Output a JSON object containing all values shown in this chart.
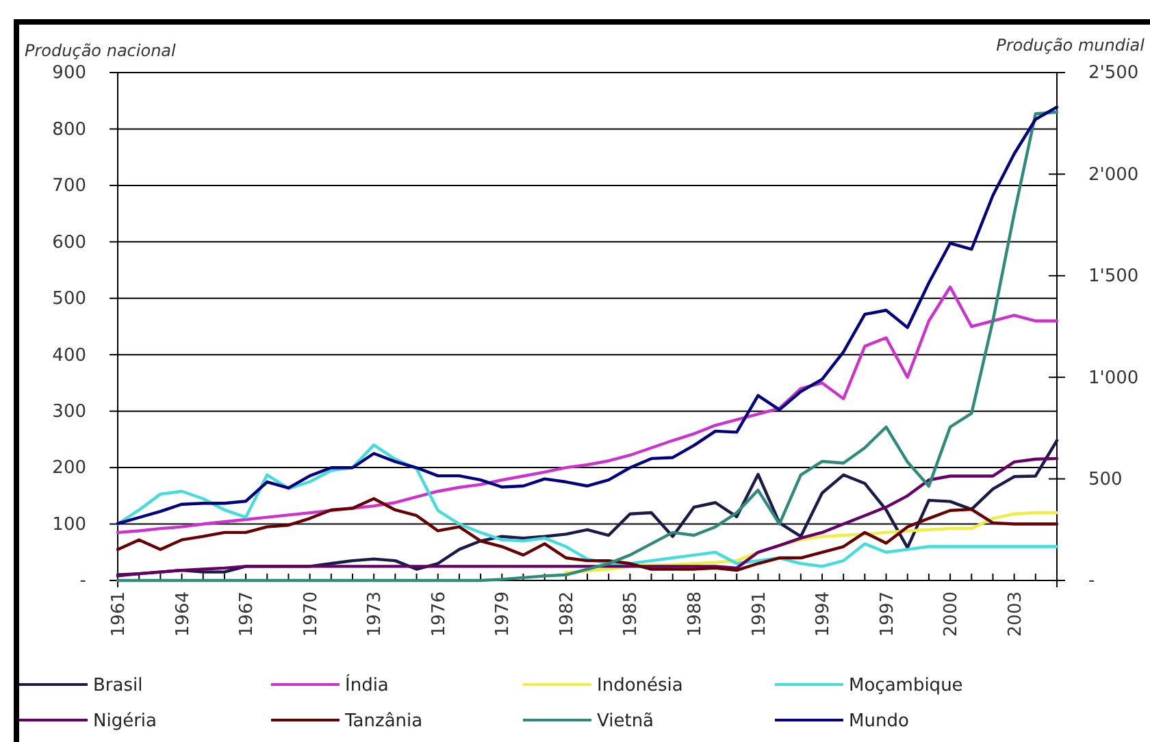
{
  "chart_data": {
    "type": "line",
    "ylabel": "Produção nacional",
    "y2label": "Produção mundial",
    "x": [
      1961,
      1962,
      1963,
      1964,
      1965,
      1966,
      1967,
      1968,
      1969,
      1970,
      1971,
      1972,
      1973,
      1974,
      1975,
      1976,
      1977,
      1978,
      1979,
      1980,
      1981,
      1982,
      1983,
      1984,
      1985,
      1986,
      1987,
      1988,
      1989,
      1990,
      1991,
      1992,
      1993,
      1994,
      1995,
      1996,
      1997,
      1998,
      1999,
      2000,
      2001,
      2002,
      2003,
      2004,
      2005
    ],
    "xlim": [
      1961,
      2005
    ],
    "xticks": [
      1961,
      {
        "value": 1962,
        "label": null
      },
      {
        "value": 1963,
        "label": null
      },
      1964,
      {
        "value": 1965,
        "label": null
      },
      {
        "value": 1966,
        "label": null
      },
      1967,
      {
        "value": 1968,
        "label": null
      },
      {
        "value": 1969,
        "label": null
      },
      1970,
      {
        "value": 1971,
        "label": null
      },
      {
        "value": 1972,
        "label": null
      },
      1973,
      {
        "value": 1974,
        "label": null
      },
      {
        "value": 1975,
        "label": null
      },
      1976,
      {
        "value": 1977,
        "label": null
      },
      {
        "value": 1978,
        "label": null
      },
      1979,
      {
        "value": 1980,
        "label": null
      },
      {
        "value": 1981,
        "label": null
      },
      1982,
      {
        "value": 1983,
        "label": null
      },
      {
        "value": 1984,
        "label": null
      },
      1985,
      {
        "value": 1986,
        "label": null
      },
      {
        "value": 1987,
        "label": null
      },
      1988,
      {
        "value": 1989,
        "label": null
      },
      {
        "value": 1990,
        "label": null
      },
      1991,
      {
        "value": 1992,
        "label": null
      },
      {
        "value": 1993,
        "label": null
      },
      1994,
      {
        "value": 1995,
        "label": null
      },
      {
        "value": 1996,
        "label": null
      },
      1997,
      {
        "value": 1998,
        "label": null
      },
      {
        "value": 1999,
        "label": null
      },
      2000,
      {
        "value": 2001,
        "label": null
      },
      {
        "value": 2002,
        "label": null
      },
      2003,
      {
        "value": 2004,
        "label": null
      },
      {
        "value": 2005,
        "label": null
      }
    ],
    "ylim": [
      0,
      900
    ],
    "yticks": [
      {
        "value": 0,
        "label": "-"
      },
      100,
      200,
      300,
      400,
      500,
      600,
      700,
      800,
      900
    ],
    "y2lim": [
      0,
      2500
    ],
    "y2ticks": [
      {
        "value": 0,
        "label": "-"
      },
      {
        "value": 500,
        "label": "500"
      },
      {
        "value": 1000,
        "label": "1'000"
      },
      {
        "value": 1500,
        "label": "1'500"
      },
      {
        "value": 2000,
        "label": "2'000"
      },
      {
        "value": 2500,
        "label": "2'500"
      }
    ],
    "grid": "y",
    "legend": "bottom",
    "marker": "none",
    "line_style": "solid",
    "series": [
      {
        "name": "Brasil",
        "color": "#1a1a4a",
        "values": [
          10,
          12,
          15,
          18,
          15,
          15,
          25,
          25,
          25,
          25,
          30,
          35,
          38,
          35,
          20,
          30,
          55,
          70,
          78,
          75,
          78,
          82,
          90,
          80,
          118,
          120,
          78,
          130,
          138,
          113,
          188,
          102,
          78,
          155,
          187,
          172,
          125,
          58,
          142,
          140,
          126,
          162,
          184,
          185,
          248
        ]
      },
      {
        "name": "Índia",
        "color": "#cc33cc",
        "values": [
          85,
          88,
          92,
          95,
          100,
          104,
          108,
          112,
          116,
          120,
          124,
          128,
          132,
          138,
          148,
          158,
          165,
          170,
          178,
          185,
          192,
          200,
          205,
          212,
          222,
          235,
          248,
          260,
          275,
          285,
          295,
          305,
          340,
          350,
          322,
          415,
          430,
          360,
          460,
          520,
          450,
          460,
          470,
          460,
          460
        ]
      },
      {
        "name": "Indonésia",
        "color": "#eeee44",
        "values": [
          null,
          null,
          null,
          null,
          null,
          null,
          null,
          null,
          null,
          null,
          null,
          null,
          null,
          null,
          null,
          null,
          null,
          null,
          null,
          null,
          null,
          14,
          17,
          20,
          25,
          27,
          28,
          30,
          32,
          35,
          50,
          62,
          72,
          78,
          80,
          82,
          85,
          88,
          90,
          92,
          92,
          110,
          118,
          120,
          120
        ]
      },
      {
        "name": "Moçambique",
        "color": "#44dddd",
        "values": [
          100,
          125,
          153,
          158,
          145,
          125,
          112,
          187,
          163,
          175,
          195,
          200,
          240,
          215,
          198,
          124,
          100,
          85,
          72,
          70,
          75,
          60,
          38,
          30,
          30,
          35,
          40,
          45,
          50,
          30,
          35,
          40,
          30,
          25,
          35,
          65,
          50,
          55,
          60,
          60,
          60,
          60,
          60,
          60,
          60
        ]
      },
      {
        "name": "Nigéria",
        "color": "#660066",
        "values": [
          8,
          12,
          15,
          18,
          20,
          22,
          25,
          25,
          25,
          25,
          25,
          25,
          25,
          25,
          25,
          25,
          25,
          25,
          25,
          25,
          25,
          25,
          25,
          25,
          25,
          25,
          25,
          25,
          25,
          22,
          50,
          62,
          75,
          85,
          100,
          115,
          130,
          150,
          178,
          185,
          185,
          185,
          210,
          215,
          216
        ]
      },
      {
        "name": "Tanzânia",
        "color": "#660000",
        "values": [
          55,
          72,
          55,
          72,
          78,
          85,
          85,
          95,
          98,
          110,
          125,
          128,
          145,
          125,
          115,
          88,
          95,
          70,
          60,
          45,
          65,
          40,
          35,
          35,
          30,
          20,
          20,
          20,
          22,
          18,
          30,
          40,
          40,
          50,
          60,
          85,
          66,
          95,
          110,
          124,
          126,
          102,
          100,
          100,
          100
        ]
      },
      {
        "name": "Vietnã",
        "color": "#2e8b7a",
        "values": [
          0,
          0,
          0,
          0,
          0,
          0,
          0,
          0,
          0,
          0,
          0,
          0,
          0,
          0,
          0,
          0,
          0,
          0,
          2,
          5,
          8,
          10,
          20,
          30,
          45,
          65,
          85,
          80,
          95,
          120,
          160,
          100,
          187,
          211,
          208,
          235,
          272,
          210,
          167,
          272,
          296,
          460,
          650,
          827,
          830
        ]
      },
      {
        "name": "Mundo",
        "color": "#000080",
        "axis": "y2",
        "values": [
          280,
          310,
          340,
          375,
          380,
          380,
          390,
          485,
          455,
          515,
          555,
          555,
          625,
          585,
          555,
          515,
          515,
          495,
          460,
          465,
          500,
          485,
          465,
          495,
          555,
          600,
          605,
          665,
          735,
          730,
          910,
          840,
          930,
          990,
          1125,
          1310,
          1330,
          1245,
          1465,
          1660,
          1630,
          1895,
          2100,
          2270,
          2330
        ]
      }
    ]
  }
}
